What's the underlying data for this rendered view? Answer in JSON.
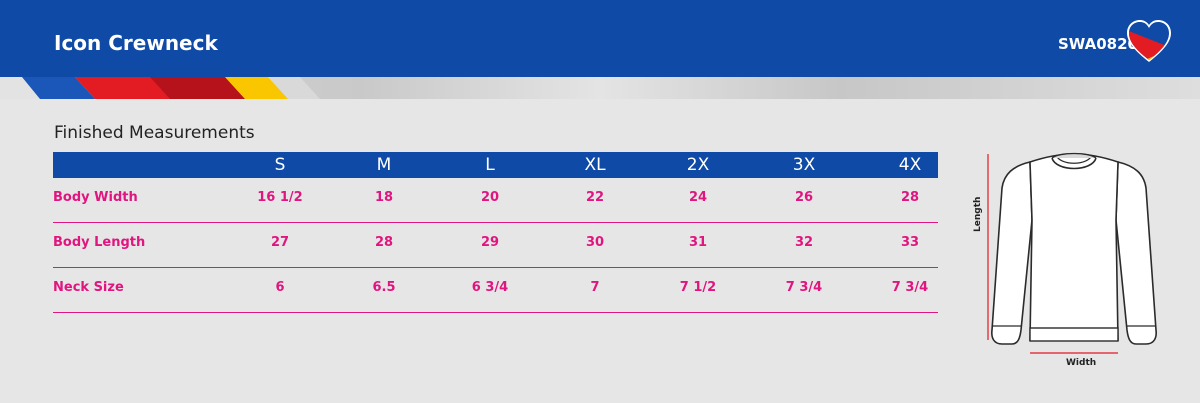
{
  "header": {
    "title": "Icon Crewneck",
    "code": "SWA0820",
    "brand_colors": {
      "blue": "#0f4aa6",
      "red": "#e31b23",
      "yellow": "#f9c600",
      "pink": "#e0157f"
    },
    "logo_icon": "heart-logo-icon"
  },
  "section": {
    "title": "Finished Measurements"
  },
  "table": {
    "sizes": [
      "S",
      "M",
      "L",
      "XL",
      "2X",
      "3X",
      "4X"
    ],
    "rows": [
      {
        "label": "Body Width",
        "values": [
          "16 1/2",
          "18",
          "20",
          "22",
          "24",
          "26",
          "28"
        ]
      },
      {
        "label": "Body Length",
        "values": [
          "27",
          "28",
          "29",
          "30",
          "31",
          "32",
          "33"
        ]
      },
      {
        "label": "Neck Size",
        "values": [
          "6",
          "6.5",
          "6 3/4",
          "7",
          "7 1/2",
          "7 3/4",
          "7 3/4"
        ]
      }
    ]
  },
  "diagram": {
    "length_label": "Length",
    "width_label": "Width",
    "icon": "crewneck-sweatshirt-icon"
  }
}
